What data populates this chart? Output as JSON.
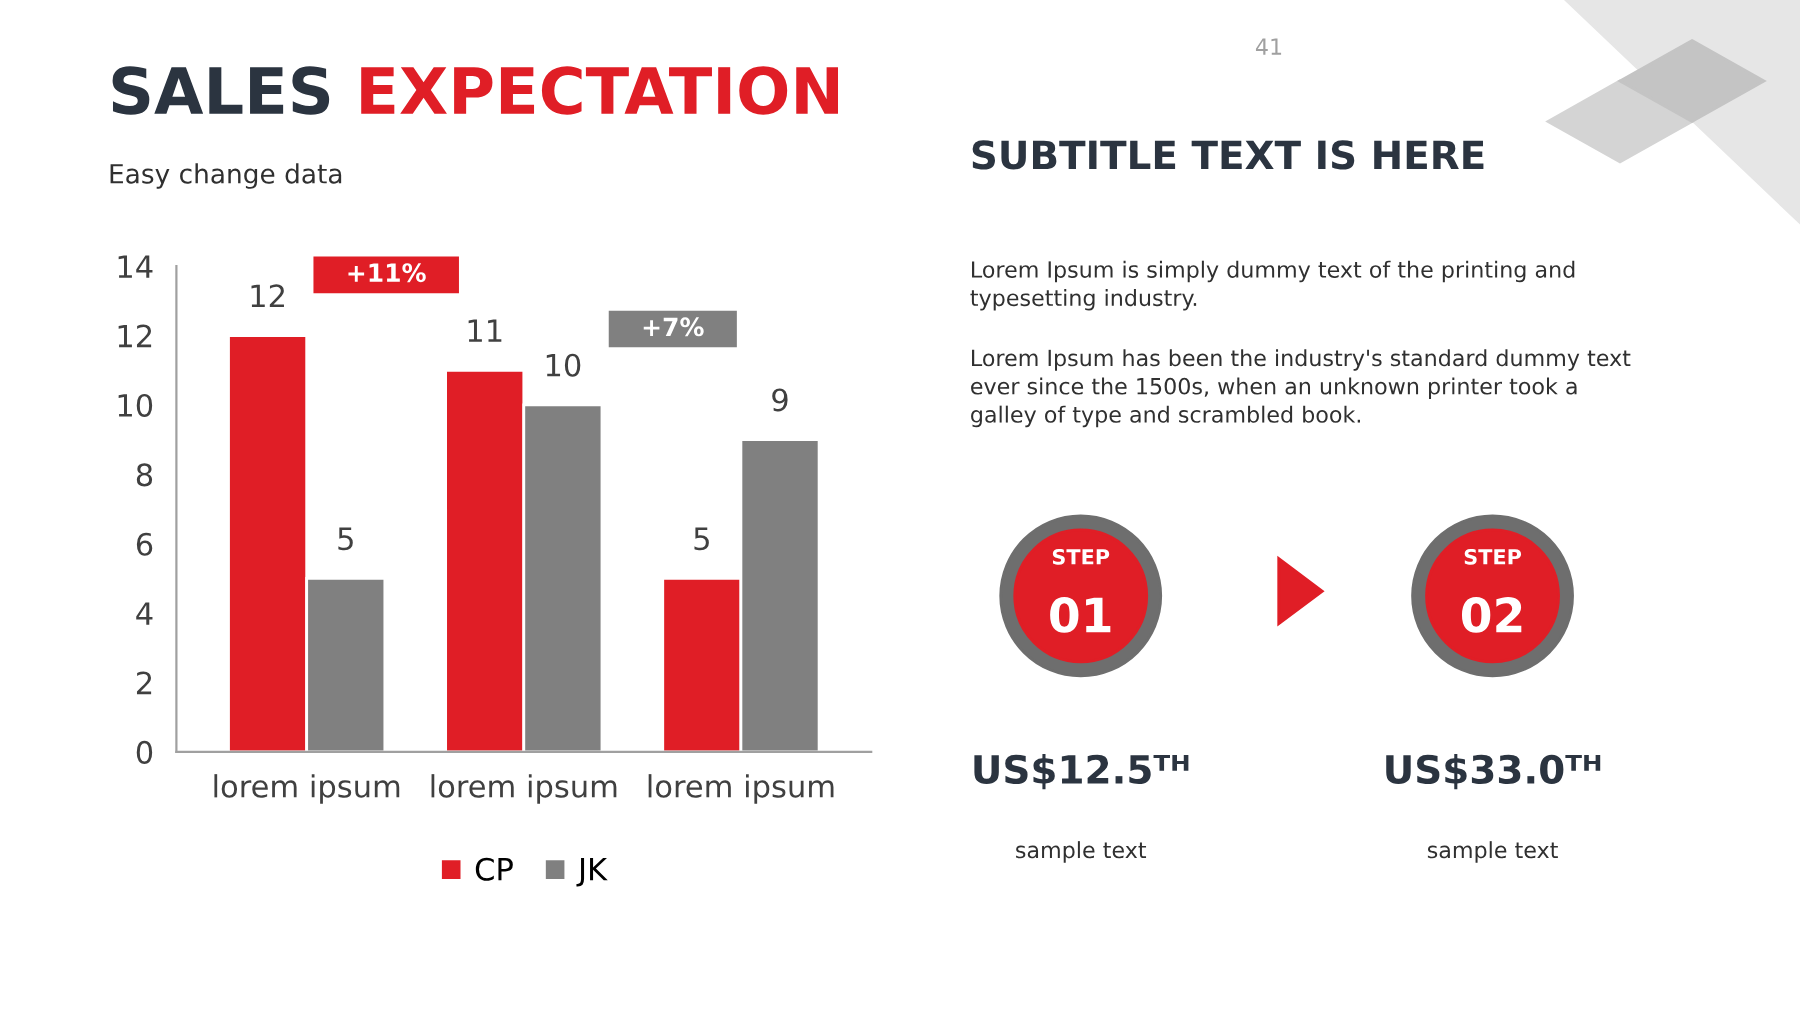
{
  "chart_data": [
    {
      "type": "bar",
      "title": "SALES EXPECTATION",
      "subtitle": "Easy change data",
      "categories": [
        "lorem ipsum",
        "lorem ipsum",
        "lorem ipsum"
      ],
      "series": [
        {
          "name": "CP",
          "color": "#e01e26",
          "values": [
            12,
            11,
            5
          ]
        },
        {
          "name": "JK",
          "color": "#808080",
          "values": [
            5,
            10,
            9
          ]
        }
      ],
      "ylim": [
        0,
        14
      ],
      "yticks": [
        0,
        2,
        4,
        6,
        8,
        10,
        12,
        14
      ],
      "data_labels": true,
      "legend": "bottom",
      "grid": false,
      "annotations": [
        "+11%",
        "+7%"
      ]
    },
    {
      "type": "other",
      "title": "SUBTITLE TEXT IS HERE",
      "annotations": [
        "Lorem Ipsum is simply dummy text of the printing and\ntypesetting industry.",
        "Lorem Ipsum has been the industry's standard dummy text\never since the 1500s, when an unknown printer took a\ngalley of type and scrambled book.",
        "STEP",
        "01",
        "STEP",
        "02",
        "US$12.5ᵀᴴ",
        "sample text",
        "US$33.0ᵀᴴ",
        "sample text",
        "41"
      ]
    }
  ]
}
